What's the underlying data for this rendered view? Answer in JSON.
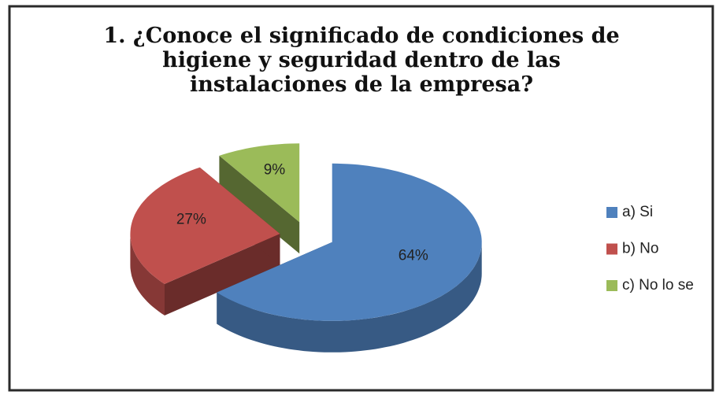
{
  "chart_data": {
    "type": "pie",
    "title": "1. ¿Conoce el significado de condiciones de higiene y seguridad dentro de las instalaciones de la empresa?",
    "categories": [
      "a) Si",
      "b) No",
      "c) No lo se"
    ],
    "values": [
      64,
      27,
      9
    ],
    "value_labels": [
      "64%",
      "27%",
      "9%"
    ],
    "colors": [
      "#4f81bd",
      "#c0504d",
      "#9bbb59"
    ],
    "legend": "right"
  }
}
